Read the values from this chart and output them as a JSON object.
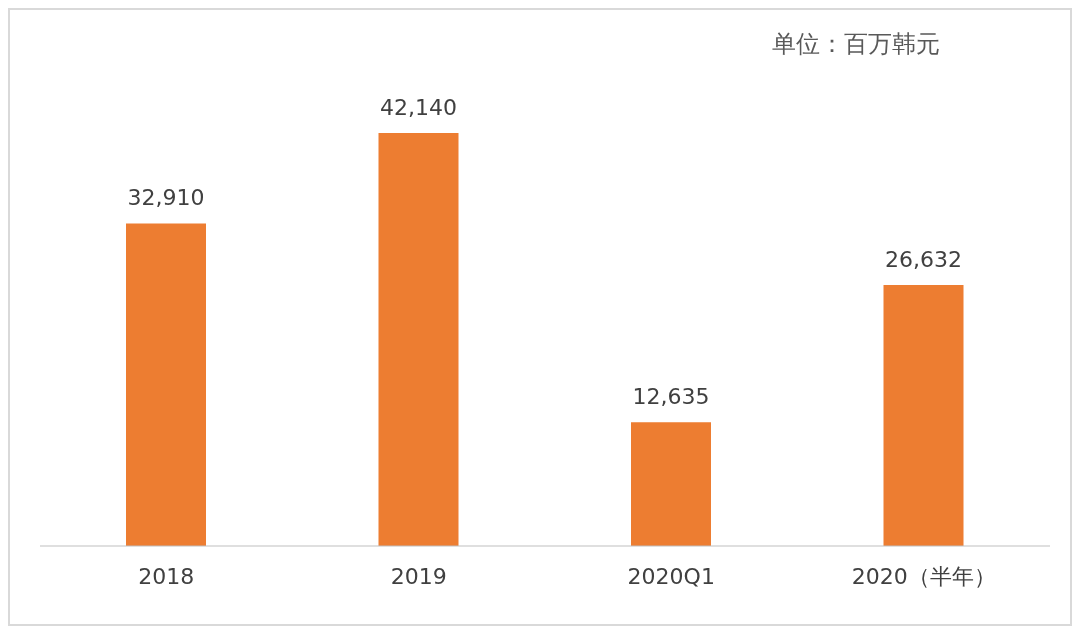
{
  "chart_data": {
    "type": "bar",
    "categories": [
      "2018",
      "2019",
      "2020Q1",
      "2020（半年）"
    ],
    "values": [
      32910,
      42140,
      12635,
      26632
    ],
    "color": "#ed7d31",
    "value_labels": [
      "32,910",
      "42,140",
      "12,635",
      "26,632"
    ],
    "annotations": [
      "单位：百万韩元"
    ]
  }
}
